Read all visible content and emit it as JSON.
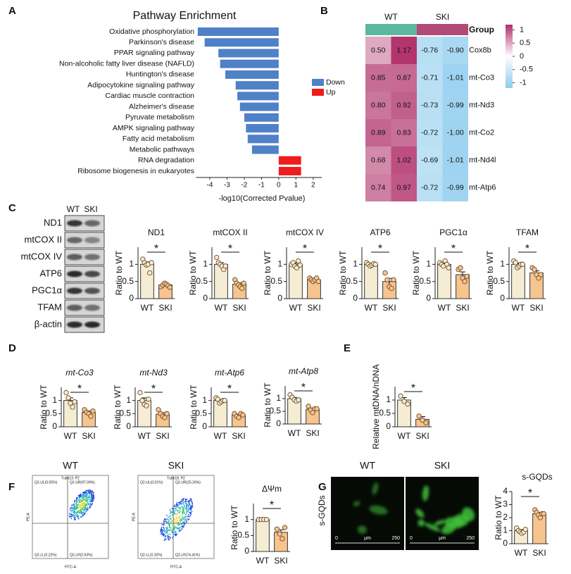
{
  "panels": [
    "A",
    "B",
    "C",
    "D",
    "E",
    "F",
    "G"
  ],
  "chart_data": [
    {
      "type": "barh",
      "title": "Pathway Enrichment",
      "xlabel": "-log10(Corrected Pvalue)",
      "categories": [
        "Oxidative phosphorylation",
        "Parkinson's disease",
        "PPAR signaling pathway",
        "Non-alcoholic fatty liver disease (NAFLD)",
        "Huntington's disease",
        "Adipocytokine signaling pathway",
        "Cardiac muscle contraction",
        "Alzheimer's disease",
        "Pyruvate metabolism",
        "AMPK signaling pathway",
        "Fatty acid metabolism",
        "Metabolic pathways",
        "RNA degradation",
        "Ribosome biogenesis in eukaryotes"
      ],
      "series": [
        {
          "name": "Down",
          "color": "#4f81c7",
          "values": [
            -4.7,
            -4.3,
            -3.5,
            -3.4,
            -3.1,
            -2.5,
            -2.4,
            -2.25,
            -2.0,
            -1.9,
            -1.8,
            -1.55,
            null,
            null
          ]
        },
        {
          "name": "Up",
          "color": "#ee1c1c",
          "values": [
            null,
            null,
            null,
            null,
            null,
            null,
            null,
            null,
            null,
            null,
            null,
            null,
            1.3,
            1.3
          ]
        }
      ],
      "xlim": [
        -4.8,
        2.5
      ],
      "xticks": [
        -4,
        -3,
        -2,
        -1,
        0,
        1,
        2
      ]
    },
    {
      "type": "heatmap",
      "group_label": "Group",
      "groups": [
        {
          "name": "WT",
          "color": "#5cb89e",
          "columns": 2
        },
        {
          "name": "SKI",
          "color": "#b24a78",
          "columns": 2
        }
      ],
      "rows": [
        "Cox8b",
        "mt-Co3",
        "mt-Nd3",
        "mt-Co2",
        "mt-Nd4l",
        "mt-Atp6"
      ],
      "values": [
        [
          0.5,
          1.17,
          -0.76,
          -0.9
        ],
        [
          0.85,
          0.87,
          -0.71,
          -1.01
        ],
        [
          0.8,
          0.92,
          -0.73,
          -0.99
        ],
        [
          0.89,
          0.83,
          -0.72,
          -1.0
        ],
        [
          0.68,
          1.02,
          -0.69,
          -1.01
        ],
        [
          0.74,
          0.97,
          -0.72,
          -0.99
        ]
      ],
      "value_labels": [
        [
          "0.50",
          "1.17",
          "-0.76",
          "-0.90"
        ],
        [
          "0.85",
          "0.87",
          "-0.71",
          "-1.01"
        ],
        [
          "0.80",
          "0.92",
          "-0.73",
          "-0.99"
        ],
        [
          "0.89",
          "0.83",
          "-0.72",
          "-1.00"
        ],
        [
          "0.68",
          "1.02",
          "-0.69",
          "-1.01"
        ],
        [
          "0.74",
          "0.97",
          "-0.72",
          "-0.99"
        ]
      ],
      "colorscale": [
        "#8ccbee",
        "#ffffff",
        "#b0306a"
      ],
      "clim": [
        -1.2,
        1.2
      ],
      "colorbar_ticks": [
        1,
        0.5,
        0,
        -0.5,
        -1
      ]
    },
    {
      "type": "bar",
      "title": "ND1",
      "ylabel": "Ratio to WT",
      "categories": [
        "WT",
        "SKI"
      ],
      "values": [
        1.0,
        0.4
      ],
      "errors": [
        0.07,
        0.03
      ],
      "points": [
        [
          1.15,
          1.05,
          0.98,
          1.0,
          0.75,
          1.05
        ],
        [
          0.35,
          0.4,
          0.45,
          0.42,
          0.38,
          0.33
        ]
      ],
      "significance": "*",
      "colors": [
        "#f5edd3",
        "#f8c48e"
      ],
      "ylim": [
        0,
        1.5
      ],
      "yticks": [
        0,
        0.5,
        1
      ]
    },
    {
      "type": "bar",
      "title": "mtCOX II",
      "ylabel": "Ratio to WT",
      "categories": [
        "WT",
        "SKI"
      ],
      "values": [
        1.0,
        0.42
      ],
      "errors": [
        0.05,
        0.04
      ],
      "points": [
        [
          1.2,
          1.05,
          1.0,
          0.95,
          0.85,
          0.95
        ],
        [
          0.55,
          0.45,
          0.4,
          0.35,
          0.3,
          0.45
        ]
      ],
      "significance": "*",
      "colors": [
        "#f5edd3",
        "#f8c48e"
      ],
      "ylim": [
        0,
        1.5
      ],
      "yticks": [
        0,
        0.5,
        1
      ]
    },
    {
      "type": "bar",
      "title": "mtCOX IV",
      "ylabel": "Ratio to WT",
      "categories": [
        "WT",
        "SKI"
      ],
      "values": [
        1.0,
        0.55
      ],
      "errors": [
        0.04,
        0.02
      ],
      "points": [
        [
          1.0,
          1.05,
          0.95,
          0.9,
          1.1,
          0.98
        ],
        [
          0.6,
          0.55,
          0.5,
          0.55,
          0.6,
          0.5
        ]
      ],
      "significance": "*",
      "colors": [
        "#f5edd3",
        "#f8c48e"
      ],
      "ylim": [
        0,
        1.5
      ],
      "yticks": [
        0,
        0.5,
        1
      ]
    },
    {
      "type": "bar",
      "title": "ATP6",
      "ylabel": "Ratio to WT",
      "categories": [
        "WT",
        "SKI"
      ],
      "values": [
        1.0,
        0.5
      ],
      "errors": [
        0.03,
        0.09
      ],
      "points": [
        [
          1.05,
          1.0,
          0.95,
          0.98,
          1.02,
          1.0
        ],
        [
          0.75,
          0.55,
          0.35,
          0.3,
          0.55
        ]
      ],
      "significance": "*",
      "colors": [
        "#f5edd3",
        "#f8c48e"
      ],
      "ylim": [
        0,
        1.5
      ],
      "yticks": [
        0,
        0.5,
        1
      ]
    },
    {
      "type": "bar",
      "title": "PGC1α",
      "ylabel": "Ratio to WT",
      "categories": [
        "WT",
        "SKI"
      ],
      "values": [
        1.0,
        0.7
      ],
      "errors": [
        0.03,
        0.08
      ],
      "points": [
        [
          1.05,
          1.0,
          0.95,
          1.1,
          1.0,
          0.9
        ],
        [
          0.85,
          0.9,
          0.6,
          0.5,
          0.65
        ]
      ],
      "significance": "*",
      "colors": [
        "#f5edd3",
        "#f8c48e"
      ],
      "ylim": [
        0,
        1.5
      ],
      "yticks": [
        0,
        0.5,
        1
      ]
    },
    {
      "type": "bar",
      "title": "TFAM",
      "ylabel": "Ratio to WT",
      "categories": [
        "WT",
        "SKI"
      ],
      "values": [
        1.0,
        0.75
      ],
      "errors": [
        0.04,
        0.06
      ],
      "points": [
        [
          1.1,
          1.05,
          0.9,
          0.95,
          1.0,
          1.0
        ],
        [
          0.9,
          0.85,
          0.7,
          0.6,
          0.7
        ]
      ],
      "significance": "*",
      "colors": [
        "#f5edd3",
        "#f8c48e"
      ],
      "ylim": [
        0,
        1.5
      ],
      "yticks": [
        0,
        0.5,
        1
      ]
    },
    {
      "type": "bar",
      "title": "mt-Co3",
      "italic_title": true,
      "ylabel": "Ratio to WT",
      "categories": [
        "WT",
        "SKI"
      ],
      "values": [
        1.0,
        0.55
      ],
      "errors": [
        0.1,
        0.05
      ],
      "points": [
        [
          1.3,
          1.1,
          0.9,
          0.75,
          0.95
        ],
        [
          0.65,
          0.55,
          0.5,
          0.4,
          0.6
        ]
      ],
      "significance": "*",
      "colors": [
        "#f5edd3",
        "#f8c48e"
      ],
      "ylim": [
        0,
        1.5
      ],
      "yticks": [
        0,
        0.5,
        1
      ]
    },
    {
      "type": "bar",
      "title": "mt-Nd3",
      "italic_title": true,
      "ylabel": "Ratio to WT",
      "categories": [
        "WT",
        "SKI"
      ],
      "values": [
        1.0,
        0.48
      ],
      "errors": [
        0.1,
        0.06
      ],
      "points": [
        [
          1.3,
          1.0,
          0.85,
          0.8,
          1.05
        ],
        [
          0.65,
          0.5,
          0.4,
          0.35,
          0.5
        ]
      ],
      "significance": "*",
      "colors": [
        "#f5edd3",
        "#f8c48e"
      ],
      "ylim": [
        0,
        1.5
      ],
      "yticks": [
        0,
        0.5,
        1
      ]
    },
    {
      "type": "bar",
      "title": "mt-Atp6",
      "italic_title": true,
      "ylabel": "Ratio to WT",
      "categories": [
        "WT",
        "SKI"
      ],
      "values": [
        1.0,
        0.45
      ],
      "errors": [
        0.04,
        0.03
      ],
      "points": [
        [
          1.1,
          1.05,
          0.9,
          0.95,
          1.0,
          1.0
        ],
        [
          0.5,
          0.4,
          0.35,
          0.5,
          0.45
        ]
      ],
      "significance": "*",
      "colors": [
        "#f5edd3",
        "#f8c48e"
      ],
      "ylim": [
        0,
        1.5
      ],
      "yticks": [
        0,
        0.5,
        1
      ]
    },
    {
      "type": "bar",
      "title": "mt-Atp8",
      "italic_title": true,
      "ylabel": "Ratio to WT",
      "categories": [
        "WT",
        "SKI"
      ],
      "values": [
        1.0,
        0.58
      ],
      "errors": [
        0.05,
        0.05
      ],
      "points": [
        [
          1.15,
          1.05,
          0.95,
          0.9,
          0.95
        ],
        [
          0.7,
          0.55,
          0.45,
          0.6,
          0.6
        ]
      ],
      "significance": "*",
      "colors": [
        "#f5edd3",
        "#f8c48e"
      ],
      "ylim": [
        0,
        1.5
      ],
      "yticks": [
        0,
        0.5,
        1
      ]
    },
    {
      "type": "bar",
      "ylabel": "Relative mtDNA/nDNA",
      "categories": [
        "WT",
        "SKI"
      ],
      "values": [
        1.0,
        0.28
      ],
      "errors": [
        0.09,
        0.1
      ],
      "points": [
        [
          1.15,
          0.95,
          0.85
        ],
        [
          0.4,
          0.25,
          0.15
        ]
      ],
      "significance": "*",
      "colors": [
        "#f5edd3",
        "#f8c48e"
      ],
      "ylim": [
        0,
        1.5
      ],
      "yticks": [
        0,
        0.5,
        1
      ]
    },
    {
      "type": "bar",
      "title": "ΔΨm",
      "ylabel": "Ratio to WT",
      "categories": [
        "WT",
        "SKI"
      ],
      "values": [
        1.0,
        0.6
      ],
      "errors": [
        0.01,
        0.08
      ],
      "points": [
        [
          1.0,
          1.0,
          1.0,
          1.0
        ],
        [
          0.7,
          0.55,
          0.4,
          0.75
        ]
      ],
      "significance": "*",
      "colors": [
        "#f5edd3",
        "#f8c48e"
      ],
      "ylim": [
        0,
        1.5
      ],
      "yticks": [
        0,
        0.5,
        1
      ]
    },
    {
      "type": "bar",
      "title": "s-GQDs",
      "ylabel": "Ratio to WT",
      "categories": [
        "WT",
        "SKI"
      ],
      "values": [
        1.0,
        2.3
      ],
      "errors": [
        0.08,
        0.1
      ],
      "points": [
        [
          1.2,
          1.0,
          0.9,
          0.8,
          0.9,
          1.1
        ],
        [
          2.6,
          2.4,
          2.2,
          2.0,
          2.3,
          2.3
        ]
      ],
      "significance": "*",
      "colors": [
        "#f5edd3",
        "#f8c48e"
      ],
      "ylim": [
        0,
        4
      ],
      "yticks": [
        0,
        1,
        2,
        3,
        4
      ]
    }
  ],
  "blot": {
    "lanes": [
      "WT",
      "SKI"
    ],
    "rows": [
      "ND1",
      "mtCOX II",
      "mtCOX IV",
      "ATP6",
      "PGC1α",
      "TFAM",
      "β-actin"
    ]
  },
  "flow": {
    "x_label": "FITC-A",
    "y_label": "PE-A",
    "plots": [
      {
        "label": "WT",
        "tube": "Tube13: P2",
        "quadrants": [
          "Q2-UL(0.05%)",
          "Q2-UR(97.09%)",
          "Q2-LL(0.22%)",
          "Q2-LR(2.63%)"
        ]
      },
      {
        "label": "SKI",
        "tube": "Tube18: P2",
        "quadrants": [
          "Q2-UL(0.01%)",
          "Q2-UR(25.26%)",
          "Q2-LL(0.32%)",
          "Q2-LR(74.41%)"
        ]
      }
    ]
  },
  "microscopy": {
    "row_label": "s-GQDs",
    "images": [
      {
        "label": "WT"
      },
      {
        "label": "SKI"
      }
    ],
    "scale": [
      "0",
      "μm",
      "250"
    ]
  }
}
